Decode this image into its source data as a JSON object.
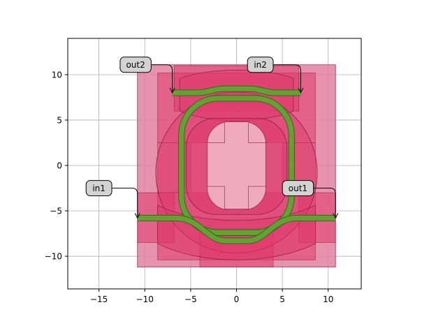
{
  "chart_data": {
    "type": "scatter",
    "title": "",
    "xlabel": "",
    "ylabel": "",
    "xlim": [
      -18.4,
      13.6
    ],
    "ylim": [
      -13.6,
      14.0
    ],
    "grid": true,
    "xticks": [
      {
        "value": -15,
        "label": "−15"
      },
      {
        "value": -10,
        "label": "−10"
      },
      {
        "value": -5,
        "label": "−5"
      },
      {
        "value": 0,
        "label": "0"
      },
      {
        "value": 5,
        "label": "5"
      },
      {
        "value": 10,
        "label": "10"
      }
    ],
    "yticks": [
      {
        "value": -10,
        "label": "−10"
      },
      {
        "value": -5,
        "label": "−5"
      },
      {
        "value": 0,
        "label": "0"
      },
      {
        "value": 5,
        "label": "5"
      },
      {
        "value": 10,
        "label": "10"
      }
    ],
    "colors": {
      "outer_layer": "#e37fa0",
      "mid_layer": "#df3a6c",
      "inner_window": "#f1a9c0",
      "waveguide": "#66a035",
      "waveguide_edge": "#2e6b18",
      "label_fill": "#d3d3d3"
    },
    "ports": [
      {
        "name": "in1",
        "x": -10.8,
        "y": -5.8,
        "label_x": -15.0,
        "label_y": -2.5
      },
      {
        "name": "out1",
        "x": 10.8,
        "y": -5.8,
        "label_x": 6.7,
        "label_y": -2.5
      },
      {
        "name": "out2",
        "x": -7.0,
        "y": 8.0,
        "label_x": -11.0,
        "label_y": 11.1
      },
      {
        "name": "in2",
        "x": 7.0,
        "y": 8.0,
        "label_x": 2.6,
        "label_y": 11.1
      }
    ]
  }
}
